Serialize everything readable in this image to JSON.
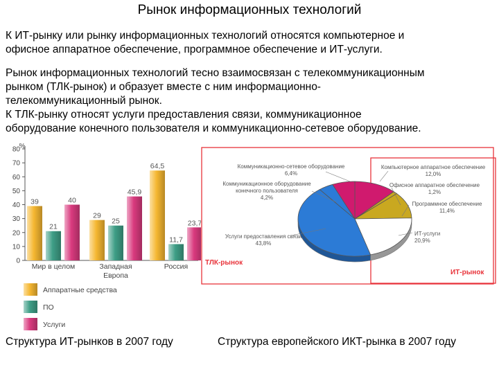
{
  "title": "Рынок информационных технологий",
  "paragraphs": [
    "К ИТ-рынку или рынку информационных технологий относятся компьютерное и\nофисное аппаратное обеспечение, программное обеспечение и ИТ-услуги.",
    "Рынок информационных технологий тесно взаимосвязан с телекоммуникационным\nрынком (ТЛК-рынок) и образует вместе с ним информационно-\nтелекоммуникационный рынок.\nК ТЛК-рынку относят услуги предоставления связи, коммуникационное\nоборудование конечного пользователя и коммуникационно-сетевое оборудование."
  ],
  "captions": {
    "left": "Структура ИТ-рынков в 2007 году",
    "right": "Структура европейского ИКТ-рынка в 2007 году"
  },
  "colors": {
    "hardware": "#F5B731",
    "software": "#3E9E86",
    "services": "#D93A7E",
    "frame": "#E8333A",
    "pie_blue": "#2C7BD6",
    "pie_magenta": "#D01A6E",
    "pie_olive": "#C9A820"
  },
  "chart_data": [
    {
      "type": "bar",
      "ylabel": "%",
      "ylim": [
        0,
        80
      ],
      "yticks": [
        "0",
        "10",
        "20",
        "30",
        "40",
        "50",
        "60",
        "70",
        "80"
      ],
      "categories": [
        "Мир в целом",
        "Западная\nЕвропа",
        "Россия"
      ],
      "series": [
        {
          "name": "Аппаратные средства",
          "values": [
            39,
            29,
            64.5
          ],
          "labels": [
            "39",
            "29",
            "64,5"
          ]
        },
        {
          "name": "ПО",
          "values": [
            21,
            25,
            11.7
          ],
          "labels": [
            "21",
            "25",
            "11,7"
          ]
        },
        {
          "name": "Услуги",
          "values": [
            40,
            45.9,
            23.7
          ],
          "labels": [
            "40",
            "45,9",
            "23,7"
          ]
        }
      ],
      "legend": "bottom-left"
    },
    {
      "type": "pie",
      "slices": [
        {
          "name": "Компьютерное аппаратное обеспечение",
          "value": 12.0,
          "label": "12,0%",
          "group": "it"
        },
        {
          "name": "Офисное аппаратное обеспечение",
          "value": 1.2,
          "label": "1,2%",
          "group": "it"
        },
        {
          "name": "Программное обеспечение",
          "value": 11.4,
          "label": "11,4%",
          "group": "it"
        },
        {
          "name": "ИТ-услуги",
          "value": 20.9,
          "label": "20,9%",
          "group": "it"
        },
        {
          "name": "Услуги предоставления связи",
          "value": 43.8,
          "label": "43,8%",
          "group": "tlk"
        },
        {
          "name": "Коммуникационное оборудование конечного пользователя",
          "value": 4.2,
          "label": "4,2%",
          "group": "tlk"
        },
        {
          "name": "Коммуникационно-сетевое оборудование",
          "value": 6.4,
          "label": "6,4%",
          "group": "tlk"
        }
      ],
      "group_labels": {
        "tlk": "ТЛК-рынок",
        "it": "ИТ-рынок"
      }
    }
  ]
}
